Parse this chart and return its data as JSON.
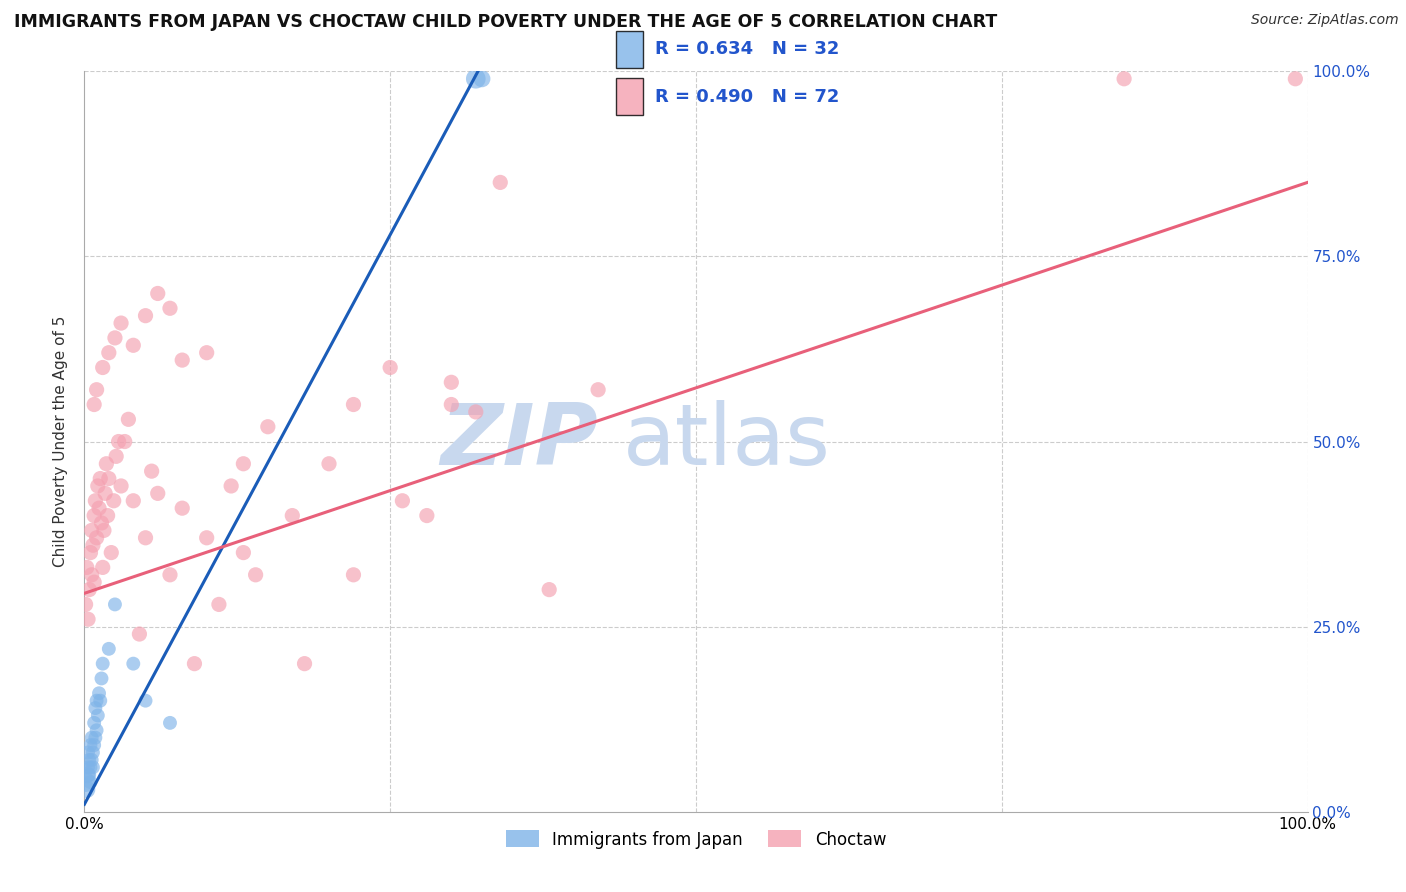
{
  "title": "IMMIGRANTS FROM JAPAN VS CHOCTAW CHILD POVERTY UNDER THE AGE OF 5 CORRELATION CHART",
  "source": "Source: ZipAtlas.com",
  "ylabel": "Child Poverty Under the Age of 5",
  "legend_r_blue": "R = 0.634",
  "legend_n_blue": "N = 32",
  "legend_r_pink": "R = 0.490",
  "legend_n_pink": "N = 72",
  "legend_label_blue": "Immigrants from Japan",
  "legend_label_pink": "Choctaw",
  "blue_color": "#7EB3E8",
  "pink_color": "#F4A0B0",
  "blue_line_color": "#1A5CB8",
  "pink_line_color": "#E8607A",
  "text_blue_color": "#2255CC",
  "watermark_zip": "ZIP",
  "watermark_atlas": "atlas",
  "watermark_color": "#C8D8EE",
  "background_color": "#FFFFFF",
  "grid_color": "#CCCCCC",
  "blue_scatter_x": [
    0.001,
    0.002,
    0.002,
    0.003,
    0.003,
    0.004,
    0.004,
    0.005,
    0.005,
    0.005,
    0.006,
    0.006,
    0.007,
    0.007,
    0.008,
    0.008,
    0.009,
    0.009,
    0.01,
    0.01,
    0.011,
    0.012,
    0.013,
    0.014,
    0.015,
    0.02,
    0.025,
    0.04,
    0.05,
    0.07,
    0.32,
    0.325
  ],
  "blue_scatter_y": [
    0.04,
    0.03,
    0.05,
    0.06,
    0.08,
    0.05,
    0.07,
    0.04,
    0.06,
    0.09,
    0.07,
    0.1,
    0.06,
    0.08,
    0.09,
    0.12,
    0.1,
    0.14,
    0.11,
    0.15,
    0.13,
    0.16,
    0.15,
    0.18,
    0.2,
    0.22,
    0.28,
    0.2,
    0.15,
    0.12,
    0.99,
    0.99
  ],
  "blue_scatter_size": [
    200,
    150,
    150,
    100,
    100,
    100,
    100,
    100,
    100,
    100,
    100,
    100,
    100,
    100,
    100,
    100,
    100,
    100,
    100,
    100,
    100,
    100,
    100,
    100,
    100,
    100,
    100,
    100,
    100,
    100,
    200,
    150
  ],
  "pink_scatter_x": [
    0.001,
    0.002,
    0.003,
    0.004,
    0.005,
    0.006,
    0.006,
    0.007,
    0.008,
    0.008,
    0.009,
    0.01,
    0.011,
    0.012,
    0.013,
    0.014,
    0.015,
    0.016,
    0.017,
    0.018,
    0.019,
    0.02,
    0.022,
    0.024,
    0.026,
    0.028,
    0.03,
    0.033,
    0.036,
    0.04,
    0.045,
    0.05,
    0.055,
    0.06,
    0.07,
    0.08,
    0.09,
    0.1,
    0.11,
    0.12,
    0.13,
    0.14,
    0.15,
    0.17,
    0.2,
    0.22,
    0.25,
    0.28,
    0.3,
    0.32,
    0.008,
    0.01,
    0.015,
    0.02,
    0.025,
    0.03,
    0.04,
    0.05,
    0.06,
    0.07,
    0.08,
    0.1,
    0.13,
    0.18,
    0.22,
    0.26,
    0.3,
    0.34,
    0.38,
    0.42,
    0.85,
    0.99
  ],
  "pink_scatter_y": [
    0.28,
    0.33,
    0.26,
    0.3,
    0.35,
    0.32,
    0.38,
    0.36,
    0.31,
    0.4,
    0.42,
    0.37,
    0.44,
    0.41,
    0.45,
    0.39,
    0.33,
    0.38,
    0.43,
    0.47,
    0.4,
    0.45,
    0.35,
    0.42,
    0.48,
    0.5,
    0.44,
    0.5,
    0.53,
    0.42,
    0.24,
    0.37,
    0.46,
    0.43,
    0.32,
    0.41,
    0.2,
    0.37,
    0.28,
    0.44,
    0.35,
    0.32,
    0.52,
    0.4,
    0.47,
    0.55,
    0.6,
    0.4,
    0.58,
    0.54,
    0.55,
    0.57,
    0.6,
    0.62,
    0.64,
    0.66,
    0.63,
    0.67,
    0.7,
    0.68,
    0.61,
    0.62,
    0.47,
    0.2,
    0.32,
    0.42,
    0.55,
    0.85,
    0.3,
    0.57,
    0.99,
    0.99
  ],
  "pink_scatter_size": [
    120,
    120,
    120,
    120,
    120,
    120,
    120,
    120,
    120,
    120,
    120,
    120,
    120,
    120,
    120,
    120,
    120,
    120,
    120,
    120,
    120,
    120,
    120,
    120,
    120,
    120,
    120,
    120,
    120,
    120,
    120,
    120,
    120,
    120,
    120,
    120,
    120,
    120,
    120,
    120,
    120,
    120,
    120,
    120,
    120,
    120,
    120,
    120,
    120,
    120,
    120,
    120,
    120,
    120,
    120,
    120,
    120,
    120,
    120,
    120,
    120,
    120,
    120,
    120,
    120,
    120,
    120,
    120,
    120,
    120,
    120,
    120
  ],
  "blue_line_x": [
    0.0,
    0.325
  ],
  "blue_line_y": [
    0.01,
    1.01
  ],
  "pink_line_x": [
    0.0,
    1.0
  ],
  "pink_line_y": [
    0.295,
    0.85
  ],
  "xlim": [
    0.0,
    1.0
  ],
  "ylim": [
    0.0,
    1.0
  ],
  "xticks": [
    0.0,
    0.25,
    0.5,
    0.75,
    1.0
  ],
  "xtick_labels": [
    "0.0%",
    "",
    "",
    "",
    "100.0%"
  ],
  "yticks_right": [
    0.0,
    0.25,
    0.5,
    0.75,
    1.0
  ],
  "ytick_labels_right": [
    "0.0%",
    "25.0%",
    "50.0%",
    "75.0%",
    "100.0%"
  ]
}
